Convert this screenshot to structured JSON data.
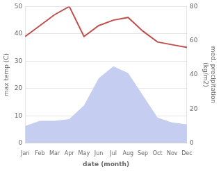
{
  "chart_data": {
    "type": "line",
    "xlabel": "date (month)",
    "ylabel": "max temp (C)",
    "y2label": "med. precipitation\n(kg/m2)",
    "categories": [
      "Jan",
      "Feb",
      "Mar",
      "Apr",
      "May",
      "Jun",
      "Jul",
      "Aug",
      "Sep",
      "Oct",
      "Nov",
      "Dec"
    ],
    "series": [
      {
        "type": "area",
        "color": "#c5cef0",
        "axis": "y2",
        "values": [
          10,
          13,
          13,
          14,
          22,
          38,
          45,
          41,
          28,
          15,
          12,
          11
        ]
      },
      {
        "type": "line",
        "color": "#c0504d",
        "values": [
          39,
          43,
          47,
          50,
          39,
          43,
          45,
          46,
          41,
          37,
          36,
          35
        ]
      }
    ],
    "ylim": [
      0,
      50
    ],
    "yticks": [
      0,
      10,
      20,
      30,
      40,
      50
    ],
    "y2lim": [
      0,
      80
    ],
    "y2ticks": [
      0,
      20,
      40,
      60,
      80
    ],
    "grid": true
  }
}
